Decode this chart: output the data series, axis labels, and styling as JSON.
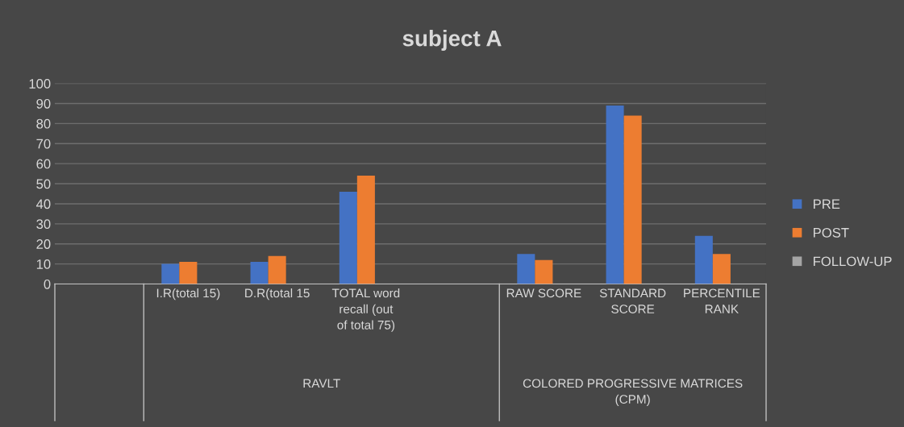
{
  "chart_data": {
    "type": "bar",
    "title": "subject A",
    "categories": [
      null,
      "I.R(total 15)",
      "D.R(total 15",
      "TOTAL word recall (out of total 75)",
      null,
      "RAW SCORE",
      "STANDARD SCORE",
      "PERCENTILE RANK"
    ],
    "series": [
      {
        "name": "PRE",
        "color": "#4472c4",
        "values": [
          null,
          10,
          11,
          46,
          null,
          15,
          89,
          24
        ]
      },
      {
        "name": "POST",
        "color": "#ed7d31",
        "values": [
          null,
          11,
          14,
          54,
          null,
          12,
          84,
          15
        ]
      },
      {
        "name": "FOLLOW-UP",
        "color": "#a5a5a5",
        "values": [
          null,
          null,
          null,
          null,
          null,
          null,
          null,
          null
        ]
      }
    ],
    "annotations": [
      "RAVLT",
      "COLORED PROGRESSIVE MATRICES (CPM)"
    ],
    "ylim": [
      0,
      100
    ],
    "yticks": [
      0,
      10,
      20,
      30,
      40,
      50,
      60,
      70,
      80,
      90,
      100
    ],
    "grid": "y",
    "legend": "right"
  }
}
